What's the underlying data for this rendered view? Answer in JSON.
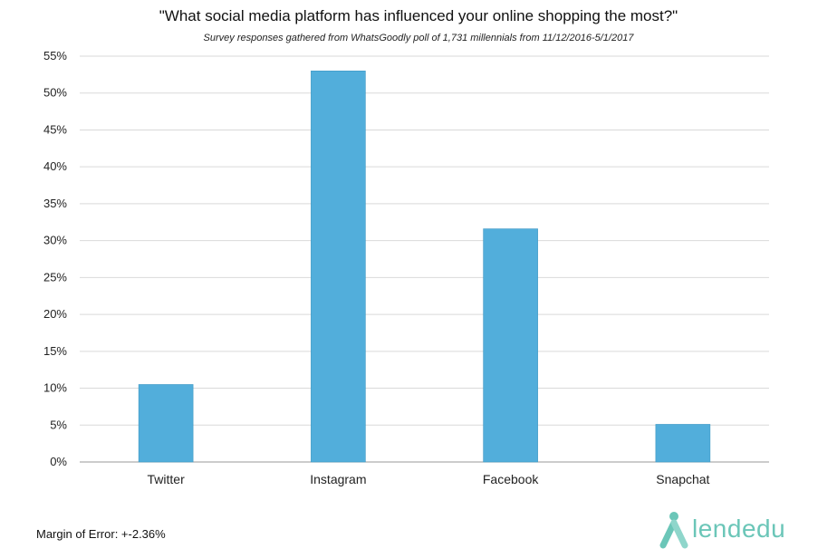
{
  "chart_data": {
    "type": "bar",
    "title": "\"What social media platform has influenced your online shopping the most?\"",
    "subtitle": "Survey responses gathered from WhatsGoodly poll of 1,731 millennials from 11/12/2016-5/1/2017",
    "categories": [
      "Twitter",
      "Instagram",
      "Facebook",
      "Snapchat"
    ],
    "values": [
      10.5,
      53,
      31.6,
      5.1
    ],
    "ylim": [
      0,
      55
    ],
    "yticks": [
      "0%",
      "5%",
      "10%",
      "15%",
      "20%",
      "25%",
      "30%",
      "35%",
      "40%",
      "45%",
      "50%",
      "55%"
    ],
    "xlabel": "",
    "ylabel": "",
    "grid": true,
    "bar_color": "#52aedb"
  },
  "footer": {
    "margin_of_error": "Margin of Error: +-2.36%",
    "brand": "lendedu",
    "brand_color": "#6bc6b8"
  }
}
